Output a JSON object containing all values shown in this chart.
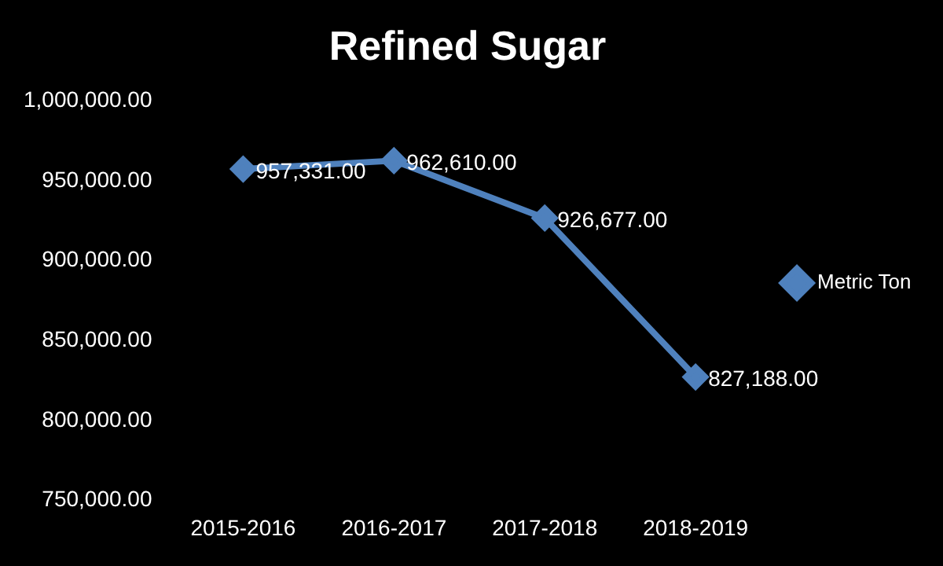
{
  "chart_data": {
    "type": "line",
    "title": "Refined Sugar",
    "categories": [
      "2015-2016",
      "2016-2017",
      "2017-2018",
      "2018-2019"
    ],
    "series": [
      {
        "name": "Metric Ton",
        "color": "#4f81bd",
        "values": [
          957331,
          962610,
          926677,
          827188
        ],
        "value_labels": [
          "957,331.00",
          "962,610.00",
          "926,677.00",
          "827,188.00"
        ]
      }
    ],
    "ylim": [
      750000,
      1000000
    ],
    "yticks": [
      {
        "value": 750000,
        "label": "750,000.00"
      },
      {
        "value": 800000,
        "label": "800,000.00"
      },
      {
        "value": 850000,
        "label": "850,000.00"
      },
      {
        "value": 900000,
        "label": "900,000.00"
      },
      {
        "value": 950000,
        "label": "950,000.00"
      },
      {
        "value": 1000000,
        "label": "1,000,000.00"
      }
    ],
    "grid": false,
    "legend": "right",
    "marker": "diamond",
    "line_style": "solid"
  }
}
